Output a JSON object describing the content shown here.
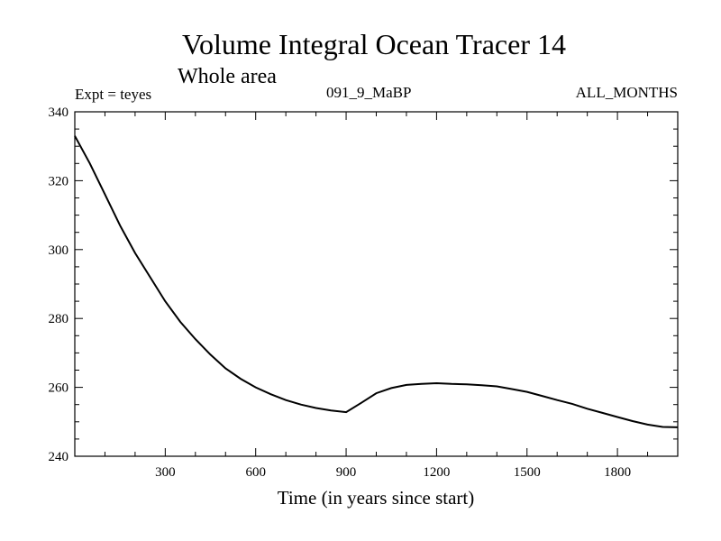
{
  "chart_data": {
    "type": "line",
    "title": "Volume Integral Ocean Tracer 14",
    "subtitle": "Whole area",
    "info_left": "Expt = teyes",
    "info_center": "091_9_MaBP",
    "info_right": "ALL_MONTHS",
    "xlabel": "Time (in years since start)",
    "ylabel": "",
    "xlim": [
      0,
      2000
    ],
    "ylim": [
      240,
      340
    ],
    "x_ticks": [
      300,
      600,
      900,
      1200,
      1500,
      1800
    ],
    "y_ticks": [
      240,
      260,
      280,
      300,
      320,
      340
    ],
    "x_minor_step": 100,
    "y_minor_step": 5,
    "grid": false,
    "line_color": "#000000",
    "series": [
      {
        "x": [
          0,
          50,
          100,
          150,
          200,
          250,
          300,
          350,
          400,
          450,
          500,
          550,
          600,
          650,
          700,
          750,
          800,
          850,
          900,
          950,
          1000,
          1050,
          1100,
          1150,
          1200,
          1250,
          1300,
          1350,
          1400,
          1450,
          1500,
          1550,
          1600,
          1650,
          1700,
          1750,
          1800,
          1850,
          1900,
          1950,
          2000
        ],
        "y": [
          333,
          325,
          316,
          307,
          299,
          292,
          285,
          279,
          274,
          269.5,
          265.5,
          262.5,
          260,
          258,
          256.3,
          255,
          254,
          253.3,
          252.8,
          255.5,
          258.3,
          259.8,
          260.7,
          261,
          261.2,
          261,
          260.9,
          260.6,
          260.3,
          259.5,
          258.7,
          257.5,
          256.3,
          255.2,
          253.8,
          252.6,
          251.4,
          250.2,
          249.2,
          248.5,
          248.4
        ]
      }
    ]
  }
}
